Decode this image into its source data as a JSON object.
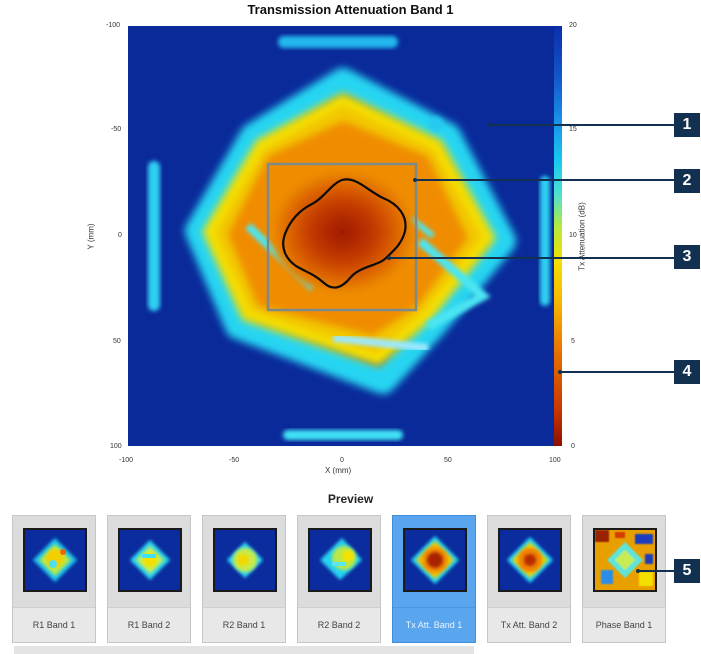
{
  "main_plot": {
    "title": "Transmission Attenuation Band 1",
    "x_label": "X (mm)",
    "y_label": "Y (mm)",
    "colorbar_label": "Tx Attenuation (dB)",
    "x_ticks": [
      "-100",
      "-50",
      "0",
      "50",
      "100"
    ],
    "y_ticks": [
      "-100",
      "-50",
      "0",
      "50",
      "100"
    ],
    "colorbar_ticks": [
      "20",
      "15",
      "10",
      "5",
      "0"
    ]
  },
  "callouts": [
    "1",
    "2",
    "3",
    "4",
    "5"
  ],
  "preview": {
    "title": "Preview",
    "items": [
      {
        "label": "R1 Band 1",
        "selected": false
      },
      {
        "label": "R1 Band 2",
        "selected": false
      },
      {
        "label": "R2 Band 1",
        "selected": false
      },
      {
        "label": "R2 Band 2",
        "selected": false
      },
      {
        "label": "Tx Att. Band 1",
        "selected": true
      },
      {
        "label": "Tx Att. Band 2",
        "selected": false
      },
      {
        "label": "Phase Band 1",
        "selected": false
      }
    ]
  },
  "colors": {
    "callout_bg": "#12304f",
    "selected_tab": "#5aa6ee",
    "plot_background": "#0a2a9a"
  }
}
